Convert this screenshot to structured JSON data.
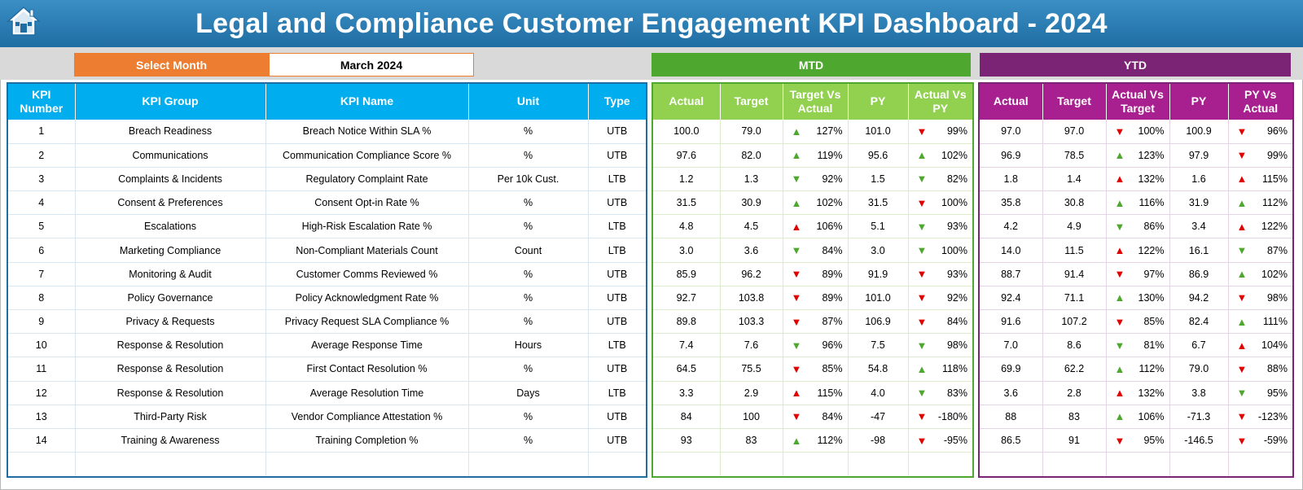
{
  "title": "Legal and Compliance Customer Engagement KPI Dashboard - 2024",
  "select_month_label": "Select Month",
  "selected_month": "March 2024",
  "mtd_label": "MTD",
  "ytd_label": "YTD",
  "colors": {
    "header": "#1f6da3",
    "select": "#ed7d31",
    "mtd": "#4ea72e",
    "ytd": "#7b2374",
    "up": "#4ea72e",
    "down": "#e00000"
  },
  "main_columns": [
    "KPI\nNumber",
    "KPI Group",
    "KPI Name",
    "Unit",
    "Type"
  ],
  "mtd_columns": [
    "Actual",
    "Target",
    "Target Vs\nActual",
    "PY",
    "Actual Vs\nPY"
  ],
  "ytd_columns": [
    "Actual",
    "Target",
    "Actual Vs\nTarget",
    "PY",
    "PY Vs\nActual"
  ],
  "rows": [
    {
      "num": "1",
      "group": "Breach Readiness",
      "name": "Breach Notice Within SLA %",
      "unit": "%",
      "type": "UTB",
      "mtd": {
        "actual": "100.0",
        "target": "79.0",
        "tva": {
          "dir": "up",
          "pct": "127%"
        },
        "py": "101.0",
        "avp": {
          "dir": "down",
          "pct": "99%"
        }
      },
      "ytd": {
        "actual": "97.0",
        "target": "97.0",
        "avt": {
          "dir": "down",
          "pct": "100%"
        },
        "py": "100.9",
        "pva": {
          "dir": "down",
          "pct": "96%"
        }
      }
    },
    {
      "num": "2",
      "group": "Communications",
      "name": "Communication Compliance Score %",
      "unit": "%",
      "type": "UTB",
      "mtd": {
        "actual": "97.6",
        "target": "82.0",
        "tva": {
          "dir": "up",
          "pct": "119%"
        },
        "py": "95.6",
        "avp": {
          "dir": "up",
          "pct": "102%"
        }
      },
      "ytd": {
        "actual": "96.9",
        "target": "78.5",
        "avt": {
          "dir": "up",
          "pct": "123%"
        },
        "py": "97.9",
        "pva": {
          "dir": "down",
          "pct": "99%"
        }
      }
    },
    {
      "num": "3",
      "group": "Complaints & Incidents",
      "name": "Regulatory Complaint Rate",
      "unit": "Per 10k Cust.",
      "type": "LTB",
      "mtd": {
        "actual": "1.2",
        "target": "1.3",
        "tva": {
          "dir": "down-g",
          "pct": "92%"
        },
        "py": "1.5",
        "avp": {
          "dir": "down-g",
          "pct": "82%"
        }
      },
      "ytd": {
        "actual": "1.8",
        "target": "1.4",
        "avt": {
          "dir": "up-r",
          "pct": "132%"
        },
        "py": "1.6",
        "pva": {
          "dir": "up-r",
          "pct": "115%"
        }
      }
    },
    {
      "num": "4",
      "group": "Consent & Preferences",
      "name": "Consent Opt-in Rate %",
      "unit": "%",
      "type": "UTB",
      "mtd": {
        "actual": "31.5",
        "target": "30.9",
        "tva": {
          "dir": "up",
          "pct": "102%"
        },
        "py": "31.5",
        "avp": {
          "dir": "down",
          "pct": "100%"
        }
      },
      "ytd": {
        "actual": "35.8",
        "target": "30.8",
        "avt": {
          "dir": "up",
          "pct": "116%"
        },
        "py": "31.9",
        "pva": {
          "dir": "up",
          "pct": "112%"
        }
      }
    },
    {
      "num": "5",
      "group": "Escalations",
      "name": "High-Risk Escalation Rate %",
      "unit": "%",
      "type": "LTB",
      "mtd": {
        "actual": "4.8",
        "target": "4.5",
        "tva": {
          "dir": "up-r",
          "pct": "106%"
        },
        "py": "5.1",
        "avp": {
          "dir": "down-g",
          "pct": "93%"
        }
      },
      "ytd": {
        "actual": "4.2",
        "target": "4.9",
        "avt": {
          "dir": "down-g",
          "pct": "86%"
        },
        "py": "3.4",
        "pva": {
          "dir": "up-r",
          "pct": "122%"
        }
      }
    },
    {
      "num": "6",
      "group": "Marketing Compliance",
      "name": "Non-Compliant Materials Count",
      "unit": "Count",
      "type": "LTB",
      "mtd": {
        "actual": "3.0",
        "target": "3.6",
        "tva": {
          "dir": "down-g",
          "pct": "84%"
        },
        "py": "3.0",
        "avp": {
          "dir": "down-g",
          "pct": "100%"
        }
      },
      "ytd": {
        "actual": "14.0",
        "target": "11.5",
        "avt": {
          "dir": "up-r",
          "pct": "122%"
        },
        "py": "16.1",
        "pva": {
          "dir": "down-g",
          "pct": "87%"
        }
      }
    },
    {
      "num": "7",
      "group": "Monitoring & Audit",
      "name": "Customer Comms Reviewed %",
      "unit": "%",
      "type": "UTB",
      "mtd": {
        "actual": "85.9",
        "target": "96.2",
        "tva": {
          "dir": "down",
          "pct": "89%"
        },
        "py": "91.9",
        "avp": {
          "dir": "down",
          "pct": "93%"
        }
      },
      "ytd": {
        "actual": "88.7",
        "target": "91.4",
        "avt": {
          "dir": "down",
          "pct": "97%"
        },
        "py": "86.9",
        "pva": {
          "dir": "up",
          "pct": "102%"
        }
      }
    },
    {
      "num": "8",
      "group": "Policy Governance",
      "name": "Policy Acknowledgment Rate %",
      "unit": "%",
      "type": "UTB",
      "mtd": {
        "actual": "92.7",
        "target": "103.8",
        "tva": {
          "dir": "down",
          "pct": "89%"
        },
        "py": "101.0",
        "avp": {
          "dir": "down",
          "pct": "92%"
        }
      },
      "ytd": {
        "actual": "92.4",
        "target": "71.1",
        "avt": {
          "dir": "up",
          "pct": "130%"
        },
        "py": "94.2",
        "pva": {
          "dir": "down",
          "pct": "98%"
        }
      }
    },
    {
      "num": "9",
      "group": "Privacy & Requests",
      "name": "Privacy Request SLA Compliance %",
      "unit": "%",
      "type": "UTB",
      "mtd": {
        "actual": "89.8",
        "target": "103.3",
        "tva": {
          "dir": "down",
          "pct": "87%"
        },
        "py": "106.9",
        "avp": {
          "dir": "down",
          "pct": "84%"
        }
      },
      "ytd": {
        "actual": "91.6",
        "target": "107.2",
        "avt": {
          "dir": "down",
          "pct": "85%"
        },
        "py": "82.4",
        "pva": {
          "dir": "up",
          "pct": "111%"
        }
      }
    },
    {
      "num": "10",
      "group": "Response & Resolution",
      "name": "Average Response Time",
      "unit": "Hours",
      "type": "LTB",
      "mtd": {
        "actual": "7.4",
        "target": "7.6",
        "tva": {
          "dir": "down-g",
          "pct": "96%"
        },
        "py": "7.5",
        "avp": {
          "dir": "down-g",
          "pct": "98%"
        }
      },
      "ytd": {
        "actual": "7.0",
        "target": "8.6",
        "avt": {
          "dir": "down-g",
          "pct": "81%"
        },
        "py": "6.7",
        "pva": {
          "dir": "up-r",
          "pct": "104%"
        }
      }
    },
    {
      "num": "11",
      "group": "Response & Resolution",
      "name": "First Contact Resolution %",
      "unit": "%",
      "type": "UTB",
      "mtd": {
        "actual": "64.5",
        "target": "75.5",
        "tva": {
          "dir": "down",
          "pct": "85%"
        },
        "py": "54.8",
        "avp": {
          "dir": "up",
          "pct": "118%"
        }
      },
      "ytd": {
        "actual": "69.9",
        "target": "62.2",
        "avt": {
          "dir": "up",
          "pct": "112%"
        },
        "py": "79.0",
        "pva": {
          "dir": "down",
          "pct": "88%"
        }
      }
    },
    {
      "num": "12",
      "group": "Response & Resolution",
      "name": "Average Resolution Time",
      "unit": "Days",
      "type": "LTB",
      "mtd": {
        "actual": "3.3",
        "target": "2.9",
        "tva": {
          "dir": "up-r",
          "pct": "115%"
        },
        "py": "4.0",
        "avp": {
          "dir": "down-g",
          "pct": "83%"
        }
      },
      "ytd": {
        "actual": "3.6",
        "target": "2.8",
        "avt": {
          "dir": "up-r",
          "pct": "132%"
        },
        "py": "3.8",
        "pva": {
          "dir": "down-g",
          "pct": "95%"
        }
      }
    },
    {
      "num": "13",
      "group": "Third-Party Risk",
      "name": "Vendor Compliance Attestation %",
      "unit": "%",
      "type": "UTB",
      "mtd": {
        "actual": "84",
        "target": "100",
        "tva": {
          "dir": "down",
          "pct": "84%"
        },
        "py": "-47",
        "avp": {
          "dir": "down",
          "pct": "-180%"
        }
      },
      "ytd": {
        "actual": "88",
        "target": "83",
        "avt": {
          "dir": "up",
          "pct": "106%"
        },
        "py": "-71.3",
        "pva": {
          "dir": "down",
          "pct": "-123%"
        }
      }
    },
    {
      "num": "14",
      "group": "Training & Awareness",
      "name": "Training Completion %",
      "unit": "%",
      "type": "UTB",
      "mtd": {
        "actual": "93",
        "target": "83",
        "tva": {
          "dir": "up",
          "pct": "112%"
        },
        "py": "-98",
        "avp": {
          "dir": "down",
          "pct": "-95%"
        }
      },
      "ytd": {
        "actual": "86.5",
        "target": "91",
        "avt": {
          "dir": "down",
          "pct": "95%"
        },
        "py": "-146.5",
        "pva": {
          "dir": "down",
          "pct": "-59%"
        }
      }
    }
  ]
}
